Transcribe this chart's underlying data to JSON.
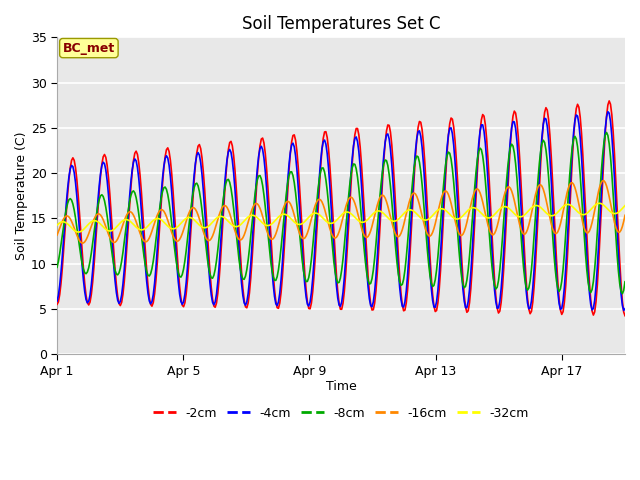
{
  "title": "Soil Temperatures Set C",
  "xlabel": "Time",
  "ylabel": "Soil Temperature (C)",
  "xlim_days": [
    0,
    18
  ],
  "ylim": [
    0,
    35
  ],
  "yticks": [
    0,
    5,
    10,
    15,
    20,
    25,
    30,
    35
  ],
  "xtick_labels": [
    "Apr 1",
    "Apr 5",
    "Apr 9",
    "Apr 13",
    "Apr 17"
  ],
  "xtick_positions": [
    0,
    4,
    8,
    12,
    16
  ],
  "colors": {
    "-2cm": "#ff0000",
    "-4cm": "#0000ff",
    "-8cm": "#00aa00",
    "-16cm": "#ff8800",
    "-32cm": "#ffff00"
  },
  "annotation_text": "BC_met",
  "annotation_box_facecolor": "#ffff99",
  "annotation_box_edgecolor": "#999900",
  "annotation_text_color": "#880000",
  "fig_facecolor": "#ffffff",
  "plot_facecolor": "#e8e8e8",
  "grid_color": "#ffffff",
  "title_fontsize": 12,
  "axis_label_fontsize": 9,
  "tick_fontsize": 9,
  "legend_fontsize": 9
}
